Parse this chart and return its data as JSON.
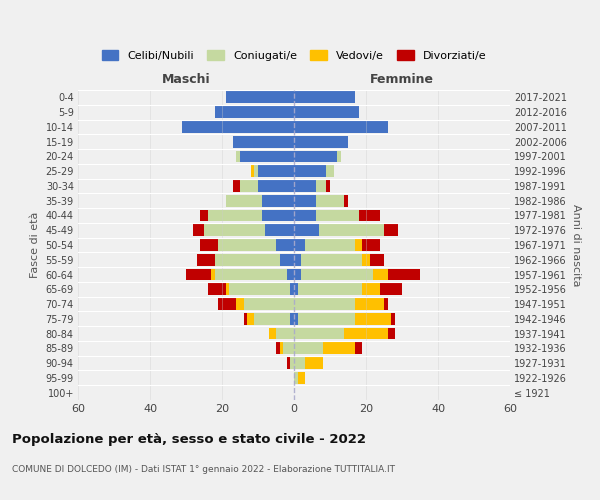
{
  "age_groups": [
    "100+",
    "95-99",
    "90-94",
    "85-89",
    "80-84",
    "75-79",
    "70-74",
    "65-69",
    "60-64",
    "55-59",
    "50-54",
    "45-49",
    "40-44",
    "35-39",
    "30-34",
    "25-29",
    "20-24",
    "15-19",
    "10-14",
    "5-9",
    "0-4"
  ],
  "birth_years": [
    "≤ 1921",
    "1922-1926",
    "1927-1931",
    "1932-1936",
    "1937-1941",
    "1942-1946",
    "1947-1951",
    "1952-1956",
    "1957-1961",
    "1962-1966",
    "1967-1971",
    "1972-1976",
    "1977-1981",
    "1982-1986",
    "1987-1991",
    "1992-1996",
    "1997-2001",
    "2002-2006",
    "2007-2011",
    "2012-2016",
    "2017-2021"
  ],
  "males": {
    "celibi": [
      0,
      0,
      0,
      0,
      0,
      1,
      0,
      1,
      2,
      4,
      5,
      8,
      9,
      9,
      10,
      10,
      15,
      17,
      31,
      22,
      19
    ],
    "coniugati": [
      0,
      0,
      1,
      3,
      5,
      10,
      14,
      17,
      20,
      18,
      16,
      17,
      15,
      10,
      5,
      1,
      1,
      0,
      0,
      0,
      0
    ],
    "vedovi": [
      0,
      0,
      0,
      1,
      2,
      2,
      2,
      1,
      1,
      0,
      0,
      0,
      0,
      0,
      0,
      1,
      0,
      0,
      0,
      0,
      0
    ],
    "divorziati": [
      0,
      0,
      1,
      1,
      0,
      1,
      5,
      5,
      7,
      5,
      5,
      3,
      2,
      0,
      2,
      0,
      0,
      0,
      0,
      0,
      0
    ]
  },
  "females": {
    "nubili": [
      0,
      0,
      0,
      0,
      0,
      1,
      0,
      1,
      2,
      2,
      3,
      7,
      6,
      6,
      6,
      9,
      12,
      15,
      26,
      18,
      17
    ],
    "coniugate": [
      0,
      1,
      3,
      8,
      14,
      16,
      17,
      18,
      20,
      17,
      14,
      18,
      12,
      8,
      3,
      2,
      1,
      0,
      0,
      0,
      0
    ],
    "vedove": [
      0,
      2,
      5,
      9,
      12,
      10,
      8,
      5,
      4,
      2,
      2,
      0,
      0,
      0,
      0,
      0,
      0,
      0,
      0,
      0,
      0
    ],
    "divorziate": [
      0,
      0,
      0,
      2,
      2,
      1,
      1,
      6,
      9,
      4,
      5,
      4,
      6,
      1,
      1,
      0,
      0,
      0,
      0,
      0,
      0
    ]
  },
  "colors": {
    "celibi": "#4472c4",
    "coniugati": "#c5d9a0",
    "vedovi": "#ffc000",
    "divorziati": "#c00000"
  },
  "xlim": 60,
  "title": "Popolazione per età, sesso e stato civile - 2022",
  "subtitle": "COMUNE DI DOLCEDO (IM) - Dati ISTAT 1° gennaio 2022 - Elaborazione TUTTITALIA.IT",
  "ylabel_left": "Fasce di età",
  "ylabel_right": "Anni di nascita",
  "xlabel_left": "Maschi",
  "xlabel_right": "Femmine",
  "legend_labels": [
    "Celibi/Nubili",
    "Coniugati/e",
    "Vedovi/e",
    "Divorziati/e"
  ],
  "background_color": "#f0f0f0"
}
